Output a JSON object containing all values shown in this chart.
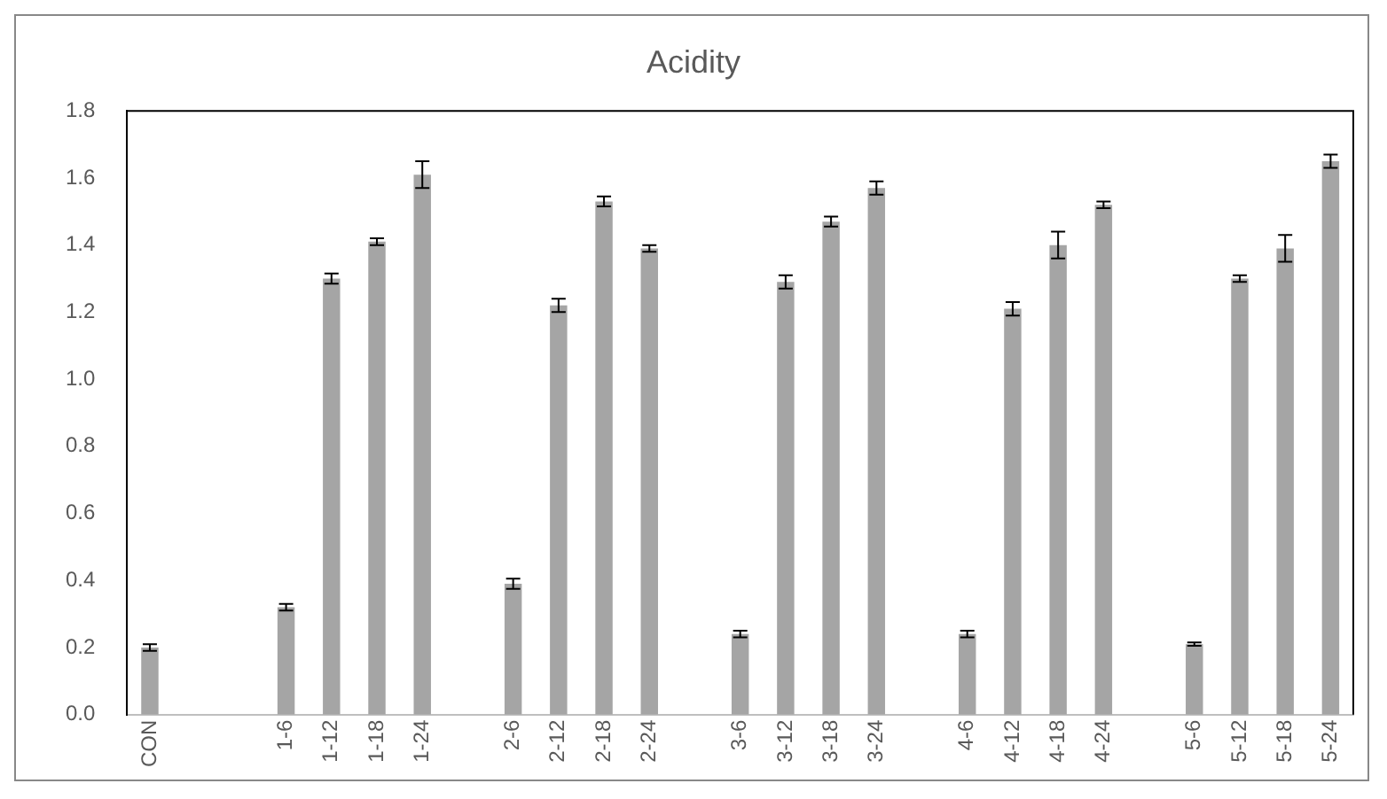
{
  "chart_data": {
    "type": "bar",
    "title": "Acidity",
    "categories": [
      "CON",
      null,
      null,
      "1-6",
      "1-12",
      "1-18",
      "1-24",
      null,
      "2-6",
      "2-12",
      "2-18",
      "2-24",
      null,
      "3-6",
      "3-12",
      "3-18",
      "3-24",
      null,
      "4-6",
      "4-12",
      "4-18",
      "4-24",
      null,
      "5-6",
      "5-12",
      "5-18",
      "5-24"
    ],
    "values": [
      0.2,
      null,
      null,
      0.32,
      1.3,
      1.41,
      1.61,
      null,
      0.39,
      1.22,
      1.53,
      1.39,
      null,
      0.24,
      1.29,
      1.47,
      1.57,
      null,
      0.24,
      1.21,
      1.4,
      1.52,
      null,
      0.21,
      1.3,
      1.39,
      1.65
    ],
    "errors": [
      0.01,
      null,
      null,
      0.01,
      0.015,
      0.01,
      0.04,
      null,
      0.015,
      0.02,
      0.015,
      0.01,
      null,
      0.01,
      0.02,
      0.015,
      0.02,
      null,
      0.01,
      0.02,
      0.04,
      0.01,
      null,
      0.005,
      0.01,
      0.04,
      0.02
    ],
    "color": "#a5a5a5",
    "ylim": [
      0,
      1.8
    ],
    "yticks": [
      {
        "value": 0,
        "label": "0.0"
      },
      0.2,
      0.4,
      0.6,
      0.8,
      {
        "value": 1,
        "label": "1.0"
      },
      1.2,
      1.4,
      1.6,
      1.8
    ],
    "grid": false,
    "legend": false
  }
}
